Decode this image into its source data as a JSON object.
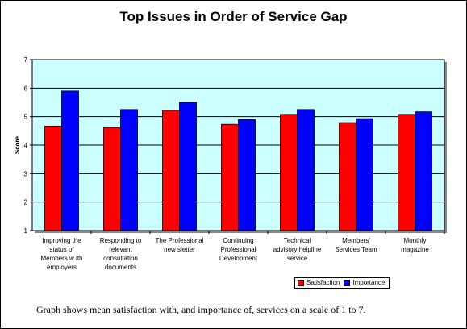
{
  "chart_data": {
    "type": "bar",
    "title": "Top Issues in Order of Service Gap",
    "xlabel": "",
    "ylabel": "Score",
    "ylim": [
      1,
      7
    ],
    "yticks": [
      "1",
      "2",
      "3",
      "4",
      "5",
      "6",
      "7"
    ],
    "grid": true,
    "legend_position": "bottom-right",
    "categories": [
      [
        "Improving the",
        "status of",
        "Members w ith",
        "employers"
      ],
      [
        "Responding to",
        "relevant",
        "consultation",
        "documents"
      ],
      [
        "The Professional",
        "new sletter"
      ],
      [
        "Continuing",
        "Professional",
        "Development"
      ],
      [
        "Technical",
        "advisory helpline",
        "service"
      ],
      [
        "Members'",
        "Services Team"
      ],
      [
        "Monthly",
        "magazine"
      ]
    ],
    "series": [
      {
        "name": "Satisfaction",
        "color": "#ff0000",
        "values": [
          4.67,
          4.62,
          5.22,
          4.73,
          5.08,
          4.79,
          5.08
        ]
      },
      {
        "name": "Importance",
        "color": "#0000ff",
        "values": [
          5.9,
          5.25,
          5.5,
          4.9,
          5.25,
          4.93,
          5.17
        ]
      }
    ],
    "plot_background": "#ccffff",
    "caption": "Graph shows mean satisfaction with, and importance of, services on a scale of 1 to 7."
  }
}
